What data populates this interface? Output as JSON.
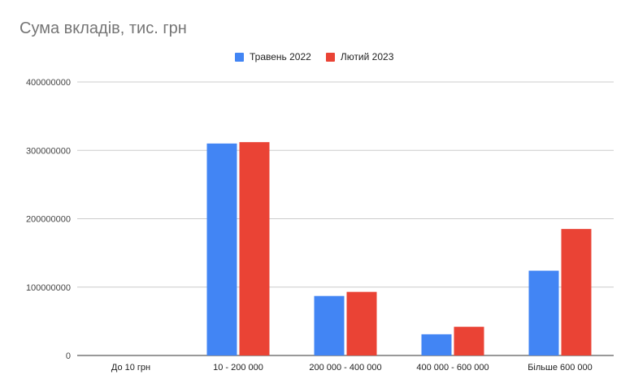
{
  "chart_data": {
    "type": "bar",
    "title": "Сума вкладів, тис. грн",
    "categories": [
      "До 10 грн",
      "10 - 200 000",
      "200 000 - 400 000",
      "400 000 - 600 000",
      "Більше 600 000"
    ],
    "series": [
      {
        "name": "Травень 2022",
        "color": "#4285f4",
        "values": [
          0,
          310000000,
          87000000,
          31000000,
          124000000
        ]
      },
      {
        "name": "Лютий 2023",
        "color": "#ea4335",
        "values": [
          0,
          312000000,
          93000000,
          42000000,
          185000000
        ]
      }
    ],
    "ylim": [
      0,
      400000000
    ],
    "yticks": [
      "0",
      "100000000",
      "200000000",
      "300000000",
      "400000000"
    ],
    "xlabel": "",
    "ylabel": "",
    "grid": true,
    "legend_position": "top"
  }
}
